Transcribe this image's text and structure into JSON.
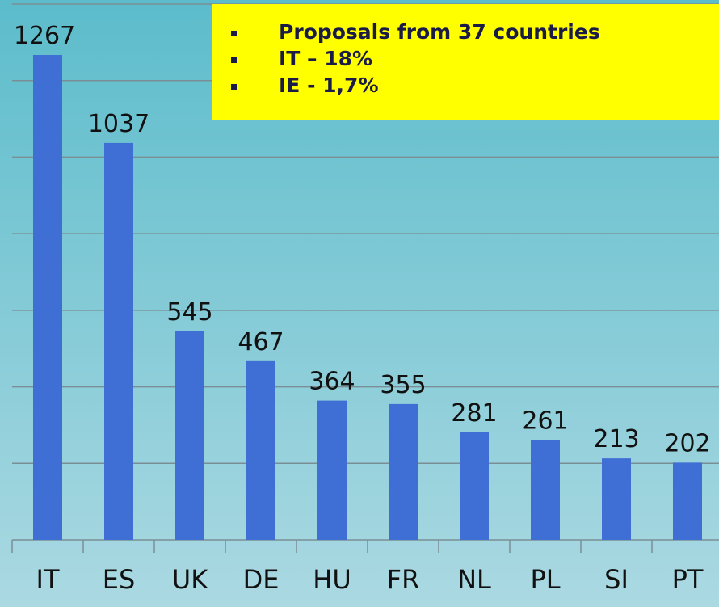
{
  "chart_data": {
    "type": "bar",
    "categories": [
      "IT",
      "ES",
      "UK",
      "DE",
      "HU",
      "FR",
      "NL",
      "PL",
      "SI",
      "PT"
    ],
    "values": [
      1267,
      1037,
      545,
      467,
      364,
      355,
      281,
      261,
      213,
      202
    ],
    "color": "#3f6fd4",
    "ylim": [
      0,
      1400
    ],
    "yticks": [
      0,
      200,
      400,
      600,
      800,
      1000,
      1200,
      1400
    ],
    "grid": true,
    "annotations": [
      "Proposals from 37 countries",
      "IT – 18%",
      "IE - 1,7%"
    ]
  }
}
